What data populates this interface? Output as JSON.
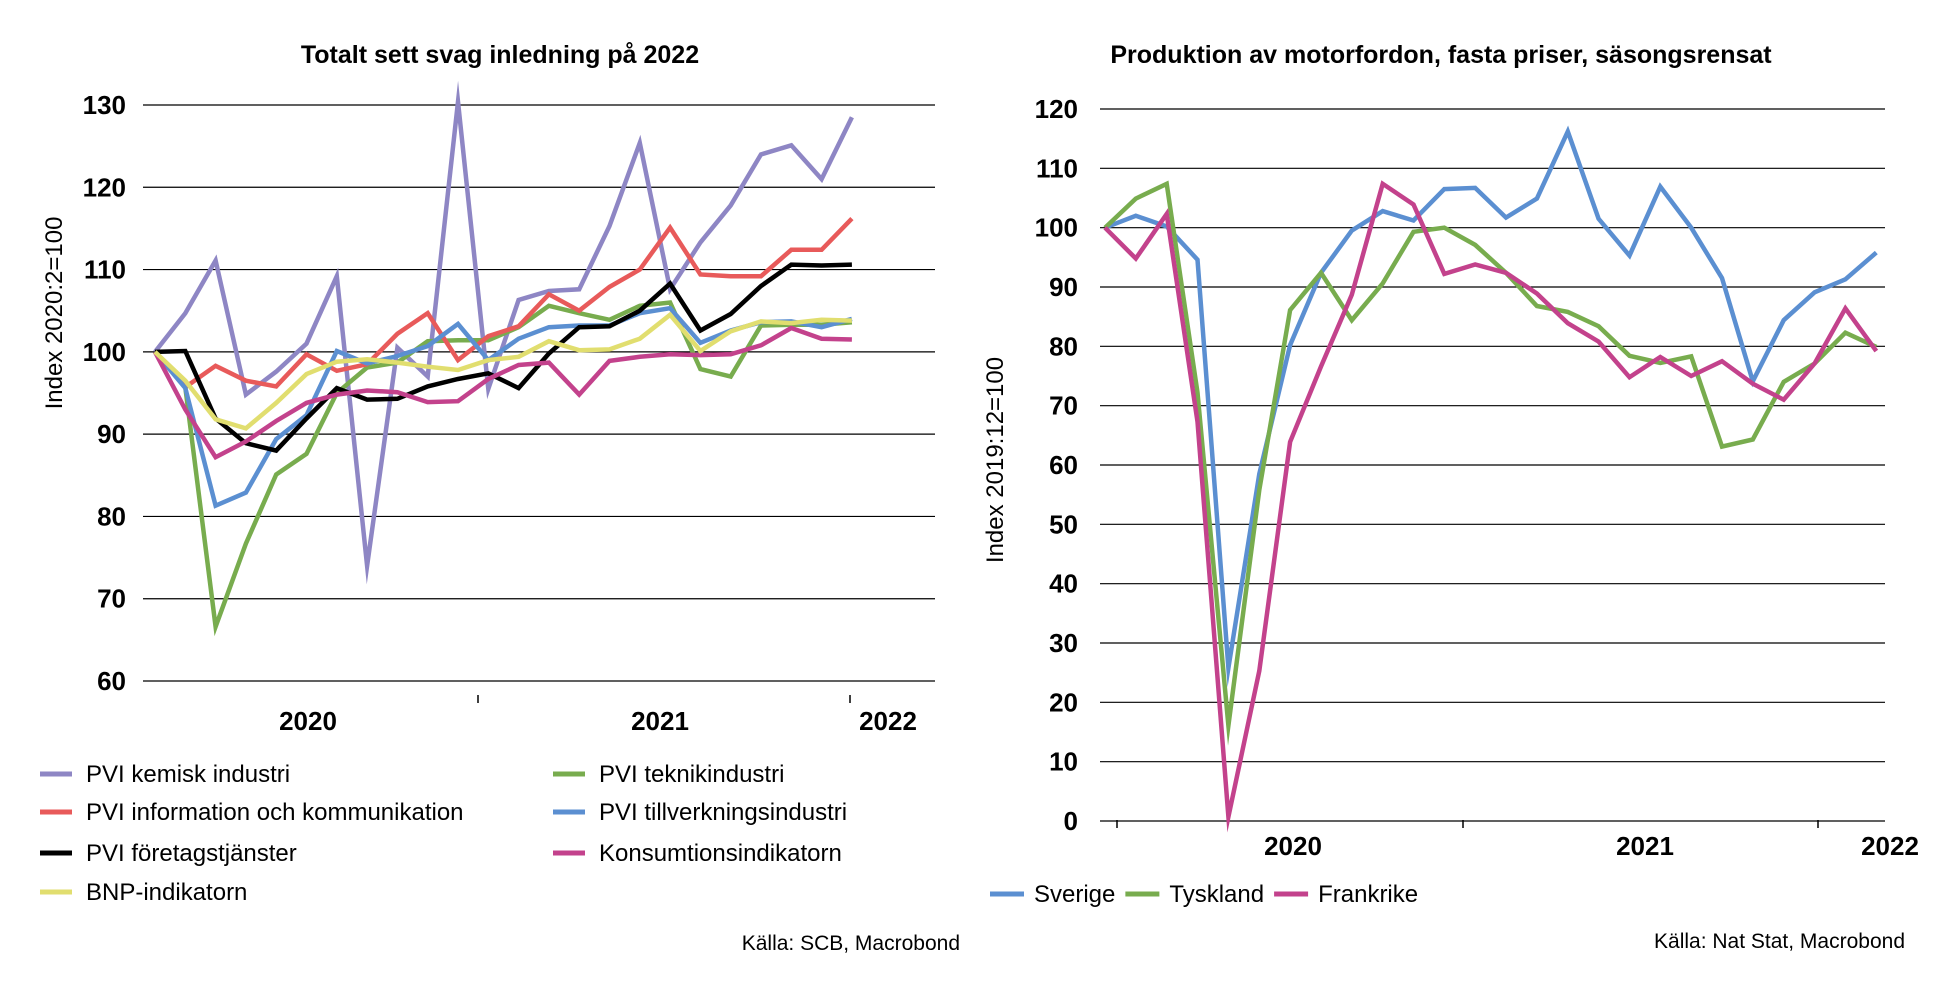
{
  "chart_data": [
    {
      "type": "line",
      "title": "Totalt sett svag inledning på 2022",
      "ylabel": "Index 2020:2=100",
      "ylim": [
        60,
        130
      ],
      "yticks": [
        60,
        70,
        80,
        90,
        100,
        110,
        120,
        130
      ],
      "x": [
        "2020-02",
        "2020-03",
        "2020-04",
        "2020-05",
        "2020-06",
        "2020-07",
        "2020-08",
        "2020-09",
        "2020-10",
        "2020-11",
        "2020-12",
        "2021-01",
        "2021-02",
        "2021-03",
        "2021-04",
        "2021-05",
        "2021-06",
        "2021-07",
        "2021-08",
        "2021-09",
        "2021-10",
        "2021-11",
        "2021-12",
        "2022-01"
      ],
      "year_labels": [
        "2020",
        "2021",
        "2022"
      ],
      "grid": true,
      "legend_position": "bottom",
      "source": "Källa: SCB, Macrobond",
      "series": [
        {
          "name": "PVI kemisk industri",
          "color": "#8e86c4",
          "values": [
            100,
            104.7,
            111.1,
            94.8,
            97.6,
            101.0,
            109.2,
            74.0,
            100.5,
            97.0,
            130.4,
            95.5,
            106.3,
            107.4,
            107.6,
            115.3,
            125.4,
            107.6,
            113.3,
            117.8,
            124.0,
            125.1,
            121.0,
            128.5
          ]
        },
        {
          "name": "PVI teknikindustri",
          "color": "#78ac4e",
          "values": [
            100,
            95.7,
            66.6,
            76.7,
            85.1,
            87.6,
            95.0,
            98.1,
            98.7,
            101.3,
            101.4,
            101.4,
            103.0,
            105.6,
            104.7,
            103.9,
            105.6,
            106.0,
            97.9,
            97.0,
            103.2,
            103.3,
            103.3,
            103.6
          ]
        },
        {
          "name": "PVI information och kommunikation",
          "color": "#e85a5a",
          "values": [
            100,
            95.7,
            98.3,
            96.5,
            95.8,
            99.7,
            97.7,
            98.5,
            102.2,
            104.7,
            99.0,
            101.9,
            103.1,
            107.0,
            105.0,
            107.9,
            110.0,
            115.1,
            109.4,
            109.2,
            109.2,
            112.4,
            112.4,
            116.2
          ]
        },
        {
          "name": "PVI tillverkningsindustri",
          "color": "#5b8fd1",
          "values": [
            100,
            95.6,
            81.3,
            82.9,
            89.4,
            92.3,
            100.1,
            98.6,
            99.5,
            100.7,
            103.4,
            99.0,
            101.6,
            103.0,
            103.2,
            103.2,
            104.7,
            105.3,
            101.1,
            102.6,
            103.6,
            103.7,
            103.0,
            104.0
          ]
        },
        {
          "name": "PVI företagstjänster",
          "color": "#000000",
          "values": [
            100,
            100.1,
            91.9,
            88.9,
            88.0,
            91.9,
            95.6,
            94.2,
            94.3,
            95.8,
            96.7,
            97.4,
            95.6,
            99.8,
            103.0,
            103.1,
            105.0,
            108.3,
            102.6,
            104.6,
            108.0,
            110.6,
            110.5,
            110.6
          ]
        },
        {
          "name": "Konsumtionsindikatorn",
          "color": "#c3428c",
          "values": [
            100,
            93.0,
            87.2,
            89.1,
            91.6,
            93.8,
            94.8,
            95.3,
            95.1,
            93.9,
            94.0,
            96.7,
            98.4,
            98.7,
            94.8,
            98.9,
            99.4,
            99.7,
            99.6,
            99.7,
            100.8,
            102.9,
            101.6,
            101.5
          ]
        },
        {
          "name": "BNP-indikatorn",
          "color": "#e1de6f",
          "values": [
            100,
            96.5,
            91.8,
            90.7,
            93.8,
            97.3,
            98.8,
            99.1,
            98.7,
            98.2,
            97.8,
            99.0,
            99.4,
            101.3,
            100.2,
            100.3,
            101.6,
            104.5,
            100.1,
            102.5,
            103.7,
            103.5,
            103.9,
            103.8
          ]
        }
      ]
    },
    {
      "type": "line",
      "title": "Produktion av motorfordon, fasta priser, säsongsrensat",
      "ylabel": "Index 2019:12=100",
      "ylim": [
        0,
        120
      ],
      "yticks": [
        0,
        10,
        20,
        30,
        40,
        50,
        60,
        70,
        80,
        90,
        100,
        110,
        120
      ],
      "x": [
        "2019-12",
        "2020-01",
        "2020-02",
        "2020-03",
        "2020-04",
        "2020-05",
        "2020-06",
        "2020-07",
        "2020-08",
        "2020-09",
        "2020-10",
        "2020-11",
        "2020-12",
        "2021-01",
        "2021-02",
        "2021-03",
        "2021-04",
        "2021-05",
        "2021-06",
        "2021-07",
        "2021-08",
        "2021-09",
        "2021-10",
        "2021-11",
        "2021-12",
        "2022-01"
      ],
      "year_labels": [
        "2020",
        "2021",
        "2022"
      ],
      "grid": true,
      "legend_position": "bottom",
      "source": "Källa: Nat Stat, Macrobond",
      "series": [
        {
          "name": "Sverige",
          "color": "#5b8fd1",
          "values": [
            100,
            102,
            100.2,
            94.6,
            25.8,
            58.5,
            80.2,
            92.4,
            99.5,
            102.8,
            101.2,
            106.5,
            106.7,
            101.7,
            104.9,
            116.2,
            101.5,
            95.3,
            106.9,
            100.0,
            91.5,
            74.1,
            84.4,
            89.1,
            91.3,
            95.8
          ]
        },
        {
          "name": "Tyskland",
          "color": "#78ac4e",
          "values": [
            100,
            104.9,
            107.4,
            72.2,
            16.1,
            55.8,
            86.1,
            92.4,
            84.4,
            90.6,
            99.3,
            100.0,
            97.1,
            92.4,
            86.8,
            85.8,
            83.4,
            78.4,
            77.2,
            78.3,
            63.1,
            64.3,
            74.0,
            77.1,
            82.3,
            79.9
          ]
        },
        {
          "name": "Frankrike",
          "color": "#c3428c",
          "values": [
            100,
            94.8,
            102.3,
            67.3,
            0.7,
            25.3,
            63.9,
            76.6,
            88.7,
            107.4,
            103.9,
            92.2,
            93.8,
            92.4,
            88.9,
            83.9,
            80.8,
            74.8,
            78.2,
            75.0,
            77.5,
            73.7,
            71.0,
            77.1,
            86.4,
            79.2
          ]
        }
      ]
    }
  ]
}
